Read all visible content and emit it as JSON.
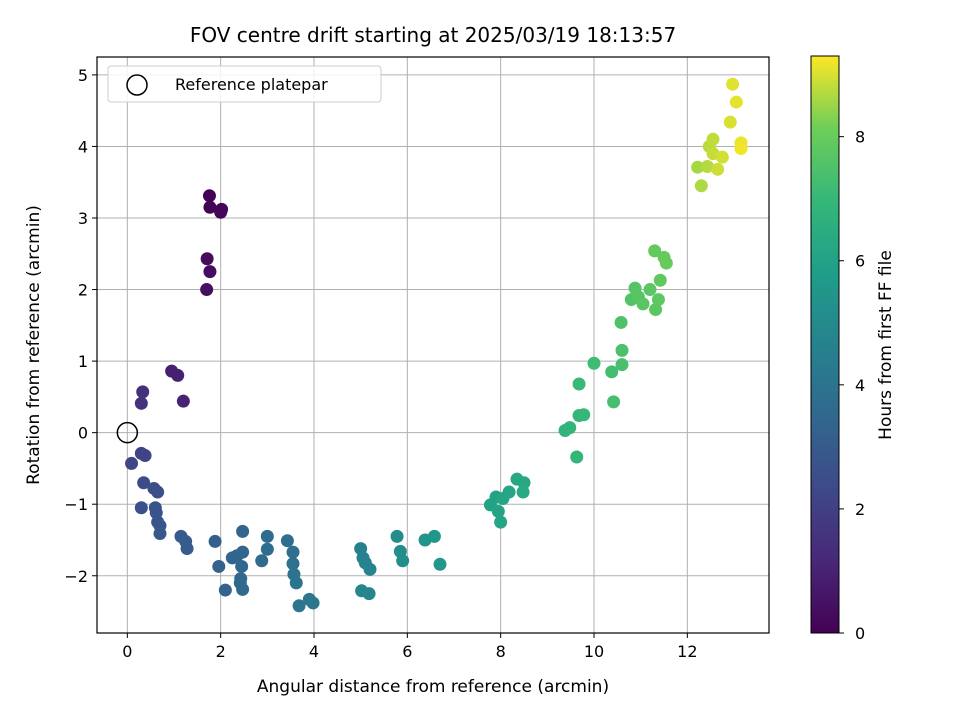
{
  "chart_data": {
    "type": "scatter",
    "title": "FOV centre drift starting at 2025/03/19 18:13:57",
    "xlabel": "Angular distance from reference (arcmin)",
    "ylabel": "Rotation from reference (arcmin)",
    "xlim": [
      -0.65,
      13.75
    ],
    "ylim": [
      -2.8,
      5.25
    ],
    "xticks": [
      0,
      2,
      4,
      6,
      8,
      10,
      12
    ],
    "yticks": [
      -2,
      -1,
      0,
      1,
      2,
      3,
      4,
      5
    ],
    "grid": true,
    "colormap": "viridis",
    "colorbar": {
      "label": "Hours from first FF file",
      "range": [
        0,
        9.3
      ],
      "ticks": [
        0,
        2,
        4,
        6,
        8
      ]
    },
    "legend": {
      "placement": "top-left",
      "entries": [
        {
          "label": "Reference platepar",
          "marker": "hollow-circle"
        }
      ]
    },
    "reference_point": {
      "x": 0,
      "y": 0
    },
    "points": [
      {
        "x": 1.76,
        "y": 3.31,
        "c": 0.05
      },
      {
        "x": 1.77,
        "y": 3.15,
        "c": 0.08
      },
      {
        "x": 2.0,
        "y": 3.08,
        "c": 0.12
      },
      {
        "x": 2.02,
        "y": 3.12,
        "c": 0.15
      },
      {
        "x": 1.71,
        "y": 2.43,
        "c": 0.3
      },
      {
        "x": 1.77,
        "y": 2.25,
        "c": 0.35
      },
      {
        "x": 1.7,
        "y": 2.0,
        "c": 0.45
      },
      {
        "x": 0.95,
        "y": 0.86,
        "c": 0.9
      },
      {
        "x": 1.08,
        "y": 0.8,
        "c": 0.95
      },
      {
        "x": 1.2,
        "y": 0.44,
        "c": 1.0
      },
      {
        "x": 0.33,
        "y": 0.57,
        "c": 1.4
      },
      {
        "x": 0.3,
        "y": 0.41,
        "c": 1.5
      },
      {
        "x": 0.3,
        "y": -0.29,
        "c": 2.1
      },
      {
        "x": 0.38,
        "y": -0.32,
        "c": 2.15
      },
      {
        "x": 0.09,
        "y": -0.43,
        "c": 2.2
      },
      {
        "x": 0.35,
        "y": -0.7,
        "c": 2.4
      },
      {
        "x": 0.57,
        "y": -0.78,
        "c": 2.5
      },
      {
        "x": 0.65,
        "y": -0.83,
        "c": 2.55
      },
      {
        "x": 0.3,
        "y": -1.05,
        "c": 2.6
      },
      {
        "x": 0.6,
        "y": -1.05,
        "c": 2.65
      },
      {
        "x": 0.62,
        "y": -1.12,
        "c": 2.7
      },
      {
        "x": 0.65,
        "y": -1.25,
        "c": 2.75
      },
      {
        "x": 0.7,
        "y": -1.3,
        "c": 2.8
      },
      {
        "x": 0.7,
        "y": -1.41,
        "c": 2.85
      },
      {
        "x": 1.15,
        "y": -1.45,
        "c": 2.95
      },
      {
        "x": 1.25,
        "y": -1.52,
        "c": 3.0
      },
      {
        "x": 1.28,
        "y": -1.62,
        "c": 3.05
      },
      {
        "x": 1.88,
        "y": -1.52,
        "c": 3.15
      },
      {
        "x": 1.96,
        "y": -1.87,
        "c": 3.25
      },
      {
        "x": 2.1,
        "y": -2.2,
        "c": 3.3
      },
      {
        "x": 2.25,
        "y": -1.75,
        "c": 3.35
      },
      {
        "x": 2.35,
        "y": -1.72,
        "c": 3.38
      },
      {
        "x": 2.47,
        "y": -1.67,
        "c": 3.4
      },
      {
        "x": 2.47,
        "y": -1.38,
        "c": 3.42
      },
      {
        "x": 2.45,
        "y": -1.87,
        "c": 3.45
      },
      {
        "x": 2.43,
        "y": -2.04,
        "c": 3.48
      },
      {
        "x": 2.42,
        "y": -2.1,
        "c": 3.5
      },
      {
        "x": 2.47,
        "y": -2.19,
        "c": 3.52
      },
      {
        "x": 2.88,
        "y": -1.79,
        "c": 3.6
      },
      {
        "x": 3.0,
        "y": -1.45,
        "c": 3.65
      },
      {
        "x": 3.0,
        "y": -1.63,
        "c": 3.7
      },
      {
        "x": 3.43,
        "y": -1.51,
        "c": 3.8
      },
      {
        "x": 3.55,
        "y": -1.67,
        "c": 3.85
      },
      {
        "x": 3.55,
        "y": -1.83,
        "c": 3.9
      },
      {
        "x": 3.57,
        "y": -1.98,
        "c": 3.95
      },
      {
        "x": 3.62,
        "y": -2.1,
        "c": 4.0
      },
      {
        "x": 3.68,
        "y": -2.42,
        "c": 4.05
      },
      {
        "x": 3.9,
        "y": -2.33,
        "c": 4.1
      },
      {
        "x": 3.98,
        "y": -2.38,
        "c": 4.15
      },
      {
        "x": 5.0,
        "y": -1.62,
        "c": 4.6
      },
      {
        "x": 5.05,
        "y": -1.75,
        "c": 4.65
      },
      {
        "x": 5.1,
        "y": -1.82,
        "c": 4.7
      },
      {
        "x": 5.2,
        "y": -1.91,
        "c": 4.75
      },
      {
        "x": 5.02,
        "y": -2.21,
        "c": 4.8
      },
      {
        "x": 5.18,
        "y": -2.25,
        "c": 4.85
      },
      {
        "x": 5.78,
        "y": -1.45,
        "c": 5.1
      },
      {
        "x": 5.85,
        "y": -1.66,
        "c": 5.15
      },
      {
        "x": 5.9,
        "y": -1.79,
        "c": 5.2
      },
      {
        "x": 6.38,
        "y": -1.5,
        "c": 5.45
      },
      {
        "x": 6.58,
        "y": -1.45,
        "c": 5.5
      },
      {
        "x": 6.7,
        "y": -1.84,
        "c": 5.55
      },
      {
        "x": 7.78,
        "y": -1.01,
        "c": 6.0
      },
      {
        "x": 7.9,
        "y": -0.9,
        "c": 6.05
      },
      {
        "x": 7.95,
        "y": -1.1,
        "c": 6.1
      },
      {
        "x": 8.0,
        "y": -1.25,
        "c": 6.12
      },
      {
        "x": 8.05,
        "y": -0.92,
        "c": 6.15
      },
      {
        "x": 8.18,
        "y": -0.83,
        "c": 6.2
      },
      {
        "x": 8.35,
        "y": -0.65,
        "c": 6.25
      },
      {
        "x": 8.5,
        "y": -0.7,
        "c": 6.3
      },
      {
        "x": 8.48,
        "y": -0.83,
        "c": 6.35
      },
      {
        "x": 9.38,
        "y": 0.03,
        "c": 6.8
      },
      {
        "x": 9.48,
        "y": 0.07,
        "c": 6.85
      },
      {
        "x": 9.63,
        "y": -0.34,
        "c": 6.9
      },
      {
        "x": 9.68,
        "y": 0.24,
        "c": 6.95
      },
      {
        "x": 9.78,
        "y": 0.25,
        "c": 7.0
      },
      {
        "x": 9.68,
        "y": 0.68,
        "c": 7.05
      },
      {
        "x": 10.0,
        "y": 0.97,
        "c": 7.2
      },
      {
        "x": 10.38,
        "y": 0.85,
        "c": 7.3
      },
      {
        "x": 10.42,
        "y": 0.43,
        "c": 7.35
      },
      {
        "x": 10.6,
        "y": 0.95,
        "c": 7.4
      },
      {
        "x": 10.6,
        "y": 1.15,
        "c": 7.45
      },
      {
        "x": 10.58,
        "y": 1.54,
        "c": 7.5
      },
      {
        "x": 10.8,
        "y": 1.86,
        "c": 7.6
      },
      {
        "x": 10.88,
        "y": 2.02,
        "c": 7.65
      },
      {
        "x": 10.95,
        "y": 1.9,
        "c": 7.68
      },
      {
        "x": 11.05,
        "y": 1.8,
        "c": 7.7
      },
      {
        "x": 11.2,
        "y": 2.0,
        "c": 7.75
      },
      {
        "x": 11.32,
        "y": 1.72,
        "c": 7.78
      },
      {
        "x": 11.38,
        "y": 1.86,
        "c": 7.8
      },
      {
        "x": 11.42,
        "y": 2.13,
        "c": 7.85
      },
      {
        "x": 11.3,
        "y": 2.54,
        "c": 7.9
      },
      {
        "x": 11.5,
        "y": 2.45,
        "c": 7.95
      },
      {
        "x": 11.55,
        "y": 2.37,
        "c": 8.0
      },
      {
        "x": 12.22,
        "y": 3.71,
        "c": 8.6
      },
      {
        "x": 12.3,
        "y": 3.45,
        "c": 8.65
      },
      {
        "x": 12.43,
        "y": 3.72,
        "c": 8.7
      },
      {
        "x": 12.47,
        "y": 4.0,
        "c": 8.75
      },
      {
        "x": 12.55,
        "y": 4.1,
        "c": 8.8
      },
      {
        "x": 12.55,
        "y": 3.9,
        "c": 8.85
      },
      {
        "x": 12.65,
        "y": 3.68,
        "c": 8.9
      },
      {
        "x": 12.75,
        "y": 3.85,
        "c": 8.95
      },
      {
        "x": 12.92,
        "y": 4.34,
        "c": 9.0
      },
      {
        "x": 12.97,
        "y": 4.87,
        "c": 9.05
      },
      {
        "x": 13.05,
        "y": 4.62,
        "c": 9.1
      },
      {
        "x": 13.15,
        "y": 4.05,
        "c": 9.15
      },
      {
        "x": 13.15,
        "y": 3.97,
        "c": 9.2
      }
    ]
  }
}
